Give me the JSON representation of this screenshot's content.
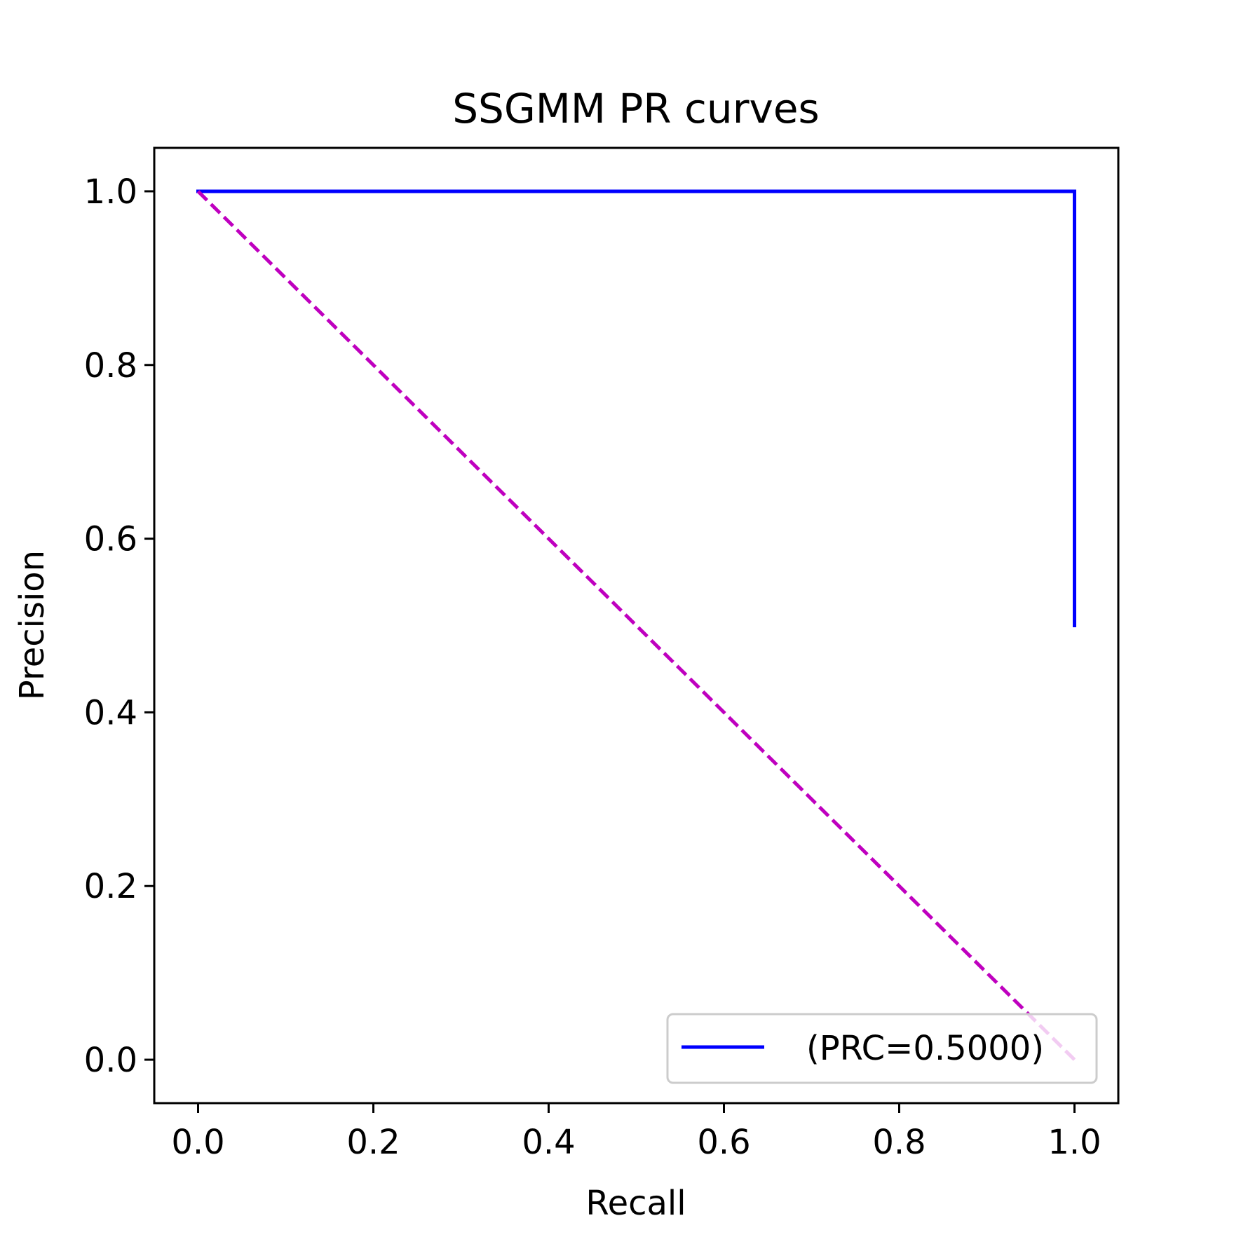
{
  "chart_data": {
    "type": "line",
    "title": "SSGMM PR curves",
    "xlabel": "Recall",
    "ylabel": "Precision",
    "xlim": [
      -0.05,
      1.05
    ],
    "ylim": [
      -0.05,
      1.05
    ],
    "xticks": [
      0.0,
      0.2,
      0.4,
      0.6,
      0.8,
      1.0
    ],
    "xtick_labels": [
      "0.0",
      "0.2",
      "0.4",
      "0.6",
      "0.8",
      "1.0"
    ],
    "yticks": [
      0.0,
      0.2,
      0.4,
      0.6,
      0.8,
      1.0
    ],
    "ytick_labels": [
      "0.0",
      "0.2",
      "0.4",
      "0.6",
      "0.8",
      "1.0"
    ],
    "grid": false,
    "legend_position": "lower-right",
    "series": [
      {
        "name": "(PRC=0.5000)",
        "color": "#0000ff",
        "style": "solid",
        "x": [
          0.0,
          1.0,
          1.0
        ],
        "y": [
          1.0,
          1.0,
          0.5
        ],
        "in_legend": true
      },
      {
        "color": "#bf00bf",
        "style": "dashed",
        "x": [
          0.0,
          1.0
        ],
        "y": [
          1.0,
          0.0
        ],
        "in_legend": false
      }
    ]
  }
}
